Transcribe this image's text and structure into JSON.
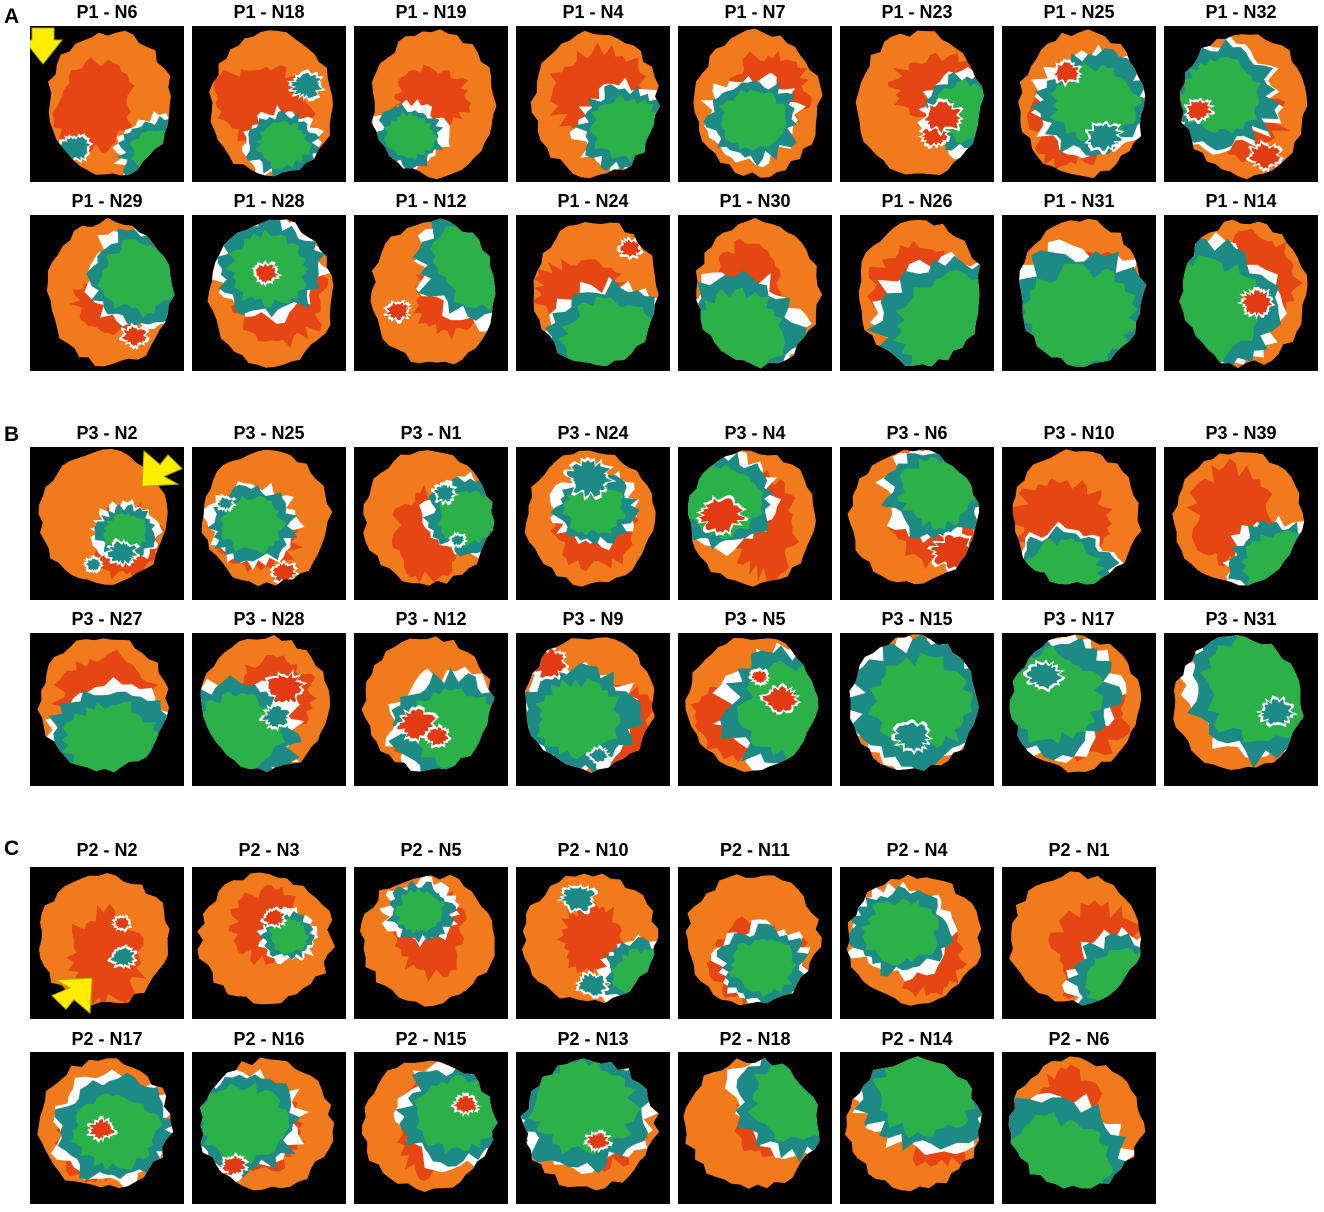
{
  "panels": [
    {
      "letter": "A",
      "colors": {
        "orange": "#f07a1c",
        "red": "#e23a12",
        "green": "#2bb04a",
        "teal": "#1e8a86",
        "white": "#ffffff",
        "black": "#000000"
      },
      "rows": [
        [
          "P1 - N6",
          "P1 - N18",
          "P1 - N19",
          "P1 - N4",
          "P1 - N7",
          "P1 - N23",
          "P1 - N25",
          "P1 - N32"
        ],
        [
          "P1 - N29",
          "P1 - N28",
          "P1 - N12",
          "P1 - N24",
          "P1 - N30",
          "P1 - N26",
          "P1 - N31",
          "P1 - N14"
        ]
      ],
      "arrow": {
        "tile": "P1 - N6",
        "direction": "down",
        "color": "#ffee00"
      }
    },
    {
      "letter": "B",
      "rows": [
        [
          "P3 - N2",
          "P3 - N25",
          "P3 - N1",
          "P3 - N24",
          "P3 - N4",
          "P3 - N6",
          "P3 - N10",
          "P3 - N39"
        ],
        [
          "P3 - N27",
          "P3 - N28",
          "P3 - N12",
          "P3 - N9",
          "P3 - N5",
          "P3 - N15",
          "P3 - N17",
          "P3 - N31"
        ]
      ],
      "arrow": {
        "tile": "P3 - N2",
        "direction": "down-left",
        "color": "#ffee00"
      }
    },
    {
      "letter": "C",
      "rows": [
        [
          "P2 - N2",
          "P2 - N3",
          "P2 - N5",
          "P2 - N10",
          "P2 - N11",
          "P2 - N4",
          "P2 - N1"
        ],
        [
          "P2 - N17",
          "P2 - N16",
          "P2 - N15",
          "P2 - N13",
          "P2 - N18",
          "P2 - N14",
          "P2 - N6"
        ]
      ],
      "arrow": {
        "tile": "P2 - N2",
        "direction": "up-right",
        "color": "#ffee00"
      }
    }
  ]
}
